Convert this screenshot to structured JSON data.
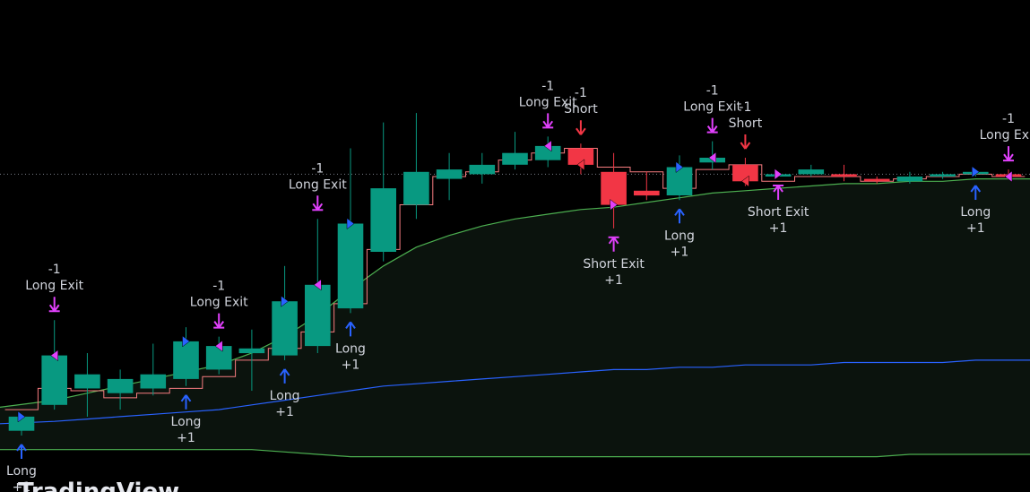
{
  "chart_data": {
    "type": "candlestick",
    "grid": false,
    "legend": "none",
    "colors": {
      "background": "#000000",
      "up": "#089981",
      "down": "#f23645",
      "long_arrow": "#2962ff",
      "exit_arrow": "#e040fb",
      "short_arrow": "#f23645",
      "band_line": "#4caf50",
      "mid_line": "#2962ff",
      "step_line": "#f77c80",
      "price_line": "#787b86",
      "fill": "#0b130d"
    },
    "candles": [
      {
        "o": 0,
        "c": 0,
        "h": 0,
        "l": 0
      },
      {
        "o": 0,
        "c": 0,
        "h": 0,
        "l": 0
      }
    ],
    "signals": [],
    "watermark": "TradingView"
  }
}
